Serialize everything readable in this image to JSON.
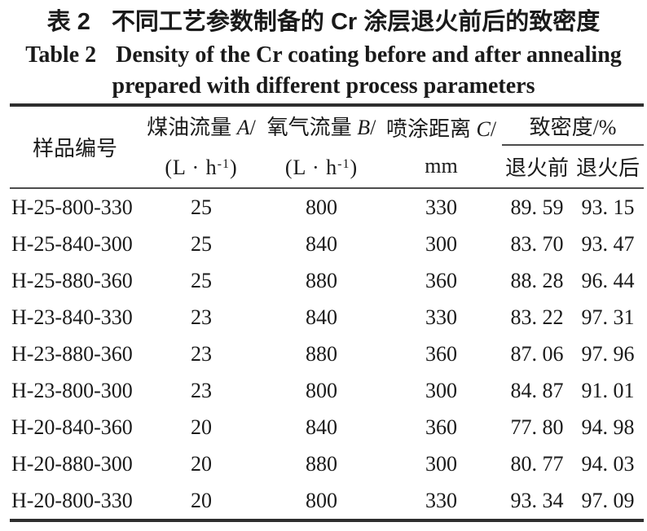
{
  "title": {
    "zh_label": "表 2",
    "zh_text": "不同工艺参数制备的 Cr 涂层退火前后的致密度",
    "en_label": "Table 2",
    "en_line1": "Density of the Cr coating before and after annealing",
    "en_line2": "prepared with different process parameters"
  },
  "table": {
    "header": {
      "sample": "样品编号",
      "kerosene": {
        "name": "煤油流量",
        "symbol": "A",
        "slash": "/",
        "unit_open": "(L · h",
        "unit_exp": "-1",
        "unit_close": ")"
      },
      "oxygen": {
        "name": "氧气流量",
        "symbol": "B",
        "slash": "/",
        "unit_open": "(L · h",
        "unit_exp": "-1",
        "unit_close": ")"
      },
      "distance": {
        "name": "喷涂距离",
        "symbol": "C",
        "slash": "/",
        "unit": "mm"
      },
      "density_group": "致密度/%",
      "density_before": "退火前",
      "density_after": "退火后"
    },
    "rows": [
      {
        "sample": "H-25-800-330",
        "kerosene": "25",
        "oxygen": "800",
        "distance": "330",
        "before": "89. 59",
        "after": "93. 15"
      },
      {
        "sample": "H-25-840-300",
        "kerosene": "25",
        "oxygen": "840",
        "distance": "300",
        "before": "83. 70",
        "after": "93. 47"
      },
      {
        "sample": "H-25-880-360",
        "kerosene": "25",
        "oxygen": "880",
        "distance": "360",
        "before": "88. 28",
        "after": "96. 44"
      },
      {
        "sample": "H-23-840-330",
        "kerosene": "23",
        "oxygen": "840",
        "distance": "330",
        "before": "83. 22",
        "after": "97. 31"
      },
      {
        "sample": "H-23-880-360",
        "kerosene": "23",
        "oxygen": "880",
        "distance": "360",
        "before": "87. 06",
        "after": "97. 96"
      },
      {
        "sample": "H-23-800-300",
        "kerosene": "23",
        "oxygen": "800",
        "distance": "300",
        "before": "84. 87",
        "after": "91. 01"
      },
      {
        "sample": "H-20-840-360",
        "kerosene": "20",
        "oxygen": "840",
        "distance": "360",
        "before": "77. 80",
        "after": "94. 98"
      },
      {
        "sample": "H-20-880-300",
        "kerosene": "20",
        "oxygen": "880",
        "distance": "300",
        "before": "80. 77",
        "after": "94. 03"
      },
      {
        "sample": "H-20-800-330",
        "kerosene": "20",
        "oxygen": "800",
        "distance": "330",
        "before": "93. 34",
        "after": "97. 09"
      }
    ]
  }
}
